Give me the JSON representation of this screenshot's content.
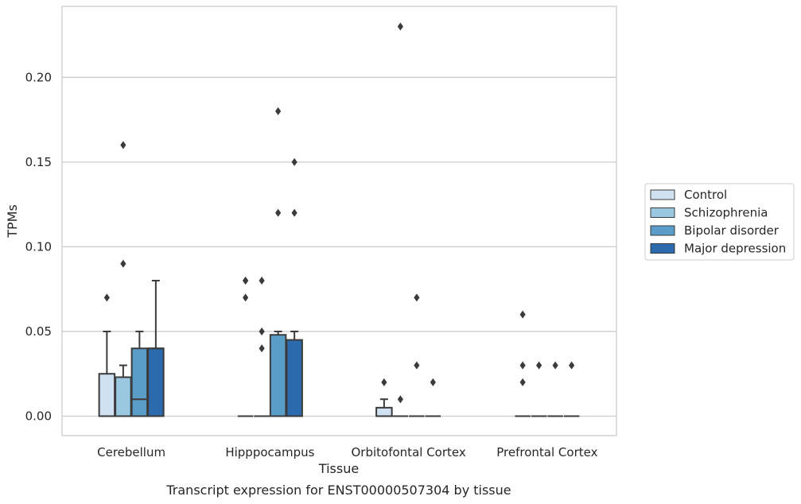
{
  "chart_data": {
    "type": "box",
    "xlabel": "Tissue",
    "ylabel": "TPMs",
    "caption": "Transcript expression for ENST00000507304 by tissue",
    "ylim": [
      -0.011,
      0.243
    ],
    "yticks": [
      0.0,
      0.05,
      0.1,
      0.15,
      0.2
    ],
    "ytick_labels": [
      "0.00",
      "0.05",
      "0.10",
      "0.15",
      "0.20"
    ],
    "grid": "horizontal",
    "legend_position": "right",
    "categories": [
      "Cerebellum",
      "Hipppocampus",
      "Orbitofontal Cortex",
      "Prefrontal Cortex"
    ],
    "series": [
      {
        "name": "Control",
        "color": "#d0e1f2",
        "boxes": [
          {
            "q1": 0.0,
            "median": 0.0,
            "q3": 0.025,
            "whisker_low": 0.0,
            "whisker_high": 0.05,
            "outliers": [
              0.07
            ]
          },
          {
            "q1": 0.0,
            "median": 0.0,
            "q3": 0.0,
            "whisker_low": 0.0,
            "whisker_high": 0.0,
            "outliers": [
              0.07,
              0.08,
              0.08
            ]
          },
          {
            "q1": 0.0,
            "median": 0.0,
            "q3": 0.005,
            "whisker_low": 0.0,
            "whisker_high": 0.01,
            "outliers": [
              0.02
            ]
          },
          {
            "q1": 0.0,
            "median": 0.0,
            "q3": 0.0,
            "whisker_low": 0.0,
            "whisker_high": 0.0,
            "outliers": [
              0.02,
              0.03,
              0.06
            ]
          }
        ]
      },
      {
        "name": "Schizophrenia",
        "color": "#9ac8e0",
        "boxes": [
          {
            "q1": 0.0,
            "median": 0.0,
            "q3": 0.023,
            "whisker_low": 0.0,
            "whisker_high": 0.03,
            "outliers": [
              0.09,
              0.16
            ]
          },
          {
            "q1": 0.0,
            "median": 0.0,
            "q3": 0.0,
            "whisker_low": 0.0,
            "whisker_high": 0.0,
            "outliers": [
              0.04,
              0.05,
              0.08
            ]
          },
          {
            "q1": 0.0,
            "median": 0.0,
            "q3": 0.0,
            "whisker_low": 0.0,
            "whisker_high": 0.0,
            "outliers": [
              0.01,
              0.23
            ]
          },
          {
            "q1": 0.0,
            "median": 0.0,
            "q3": 0.0,
            "whisker_low": 0.0,
            "whisker_high": 0.0,
            "outliers": [
              0.03
            ]
          }
        ]
      },
      {
        "name": "Bipolar disorder",
        "color": "#5a9dc8",
        "boxes": [
          {
            "q1": 0.0,
            "median": 0.01,
            "q3": 0.04,
            "whisker_low": 0.0,
            "whisker_high": 0.05,
            "outliers": []
          },
          {
            "q1": 0.0,
            "median": 0.0,
            "q3": 0.048,
            "whisker_low": 0.0,
            "whisker_high": 0.05,
            "outliers": [
              0.12,
              0.18
            ]
          },
          {
            "q1": 0.0,
            "median": 0.0,
            "q3": 0.0,
            "whisker_low": 0.0,
            "whisker_high": 0.0,
            "outliers": [
              0.03,
              0.07
            ]
          },
          {
            "q1": 0.0,
            "median": 0.0,
            "q3": 0.0,
            "whisker_low": 0.0,
            "whisker_high": 0.0,
            "outliers": [
              0.03
            ]
          }
        ]
      },
      {
        "name": "Major depression",
        "color": "#2a6aad",
        "boxes": [
          {
            "q1": 0.0,
            "median": 0.04,
            "q3": 0.04,
            "whisker_low": 0.0,
            "whisker_high": 0.08,
            "outliers": []
          },
          {
            "q1": 0.0,
            "median": 0.0,
            "q3": 0.045,
            "whisker_low": 0.0,
            "whisker_high": 0.05,
            "outliers": [
              0.12,
              0.15
            ]
          },
          {
            "q1": 0.0,
            "median": 0.0,
            "q3": 0.0,
            "whisker_low": 0.0,
            "whisker_high": 0.0,
            "outliers": [
              0.02
            ]
          },
          {
            "q1": 0.0,
            "median": 0.0,
            "q3": 0.0,
            "whisker_low": 0.0,
            "whisker_high": 0.0,
            "outliers": [
              0.03
            ]
          }
        ]
      }
    ]
  },
  "colors": {
    "box_edge": "#3b3b3b",
    "grid": "#cccccc",
    "axes_frame": "#cccccc",
    "text": "#262626"
  }
}
